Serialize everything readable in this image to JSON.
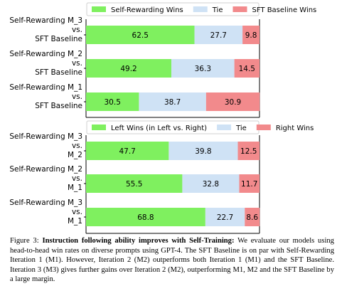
{
  "chart_data": [
    {
      "type": "bar",
      "orientation": "horizontal",
      "stacked": true,
      "normalized": true,
      "categories": [
        [
          "Self-Rewarding M_3",
          "vs.",
          "SFT Baseline"
        ],
        [
          "Self-Rewarding M_2",
          "vs.",
          "SFT Baseline"
        ],
        [
          "Self-Rewarding M_1",
          "vs.",
          "SFT Baseline"
        ]
      ],
      "series": [
        {
          "name": "Self-Rewarding Wins",
          "color": "#7ff05f",
          "values": [
            62.5,
            49.2,
            30.5
          ]
        },
        {
          "name": "Tie",
          "color": "#cfe2f5",
          "values": [
            27.7,
            36.3,
            38.7
          ]
        },
        {
          "name": "SFT Baseline Wins",
          "color": "#f28a8c",
          "values": [
            9.8,
            14.5,
            30.9
          ]
        }
      ],
      "xlim": [
        0,
        100
      ],
      "legend": "top",
      "grid": false
    },
    {
      "type": "bar",
      "orientation": "horizontal",
      "stacked": true,
      "normalized": true,
      "categories": [
        [
          "Self-Rewarding M_3",
          "vs.",
          "M_2"
        ],
        [
          "Self-Rewarding M_2",
          "vs.",
          "M_1"
        ],
        [
          "Self-Rewarding M_3",
          "vs.",
          "M_1"
        ]
      ],
      "series": [
        {
          "name": "Left Wins (in Left vs. Right)",
          "color": "#7ff05f",
          "values": [
            47.7,
            55.5,
            68.8
          ]
        },
        {
          "name": "Tie",
          "color": "#cfe2f5",
          "values": [
            39.8,
            32.8,
            22.7
          ]
        },
        {
          "name": "Right Wins",
          "color": "#f28a8c",
          "values": [
            12.5,
            11.7,
            8.6
          ]
        }
      ],
      "xlim": [
        0,
        100
      ],
      "legend": "top",
      "grid": false
    }
  ],
  "caption": {
    "label": "Figure 3:",
    "bold": "Instruction following ability improves with Self-Training:",
    "text": "We evaluate our models using head-to-head win rates on diverse prompts using GPT-4. The SFT Baseline is on par with Self-Rewarding Iteration 1 (M1). However, Iteration 2 (M2) outperforms both Iteration 1 (M1) and the SFT Baseline. Iteration 3 (M3) gives further gains over Iteration 2 (M2), outperforming M1, M2 and the SFT Baseline by a large margin."
  }
}
